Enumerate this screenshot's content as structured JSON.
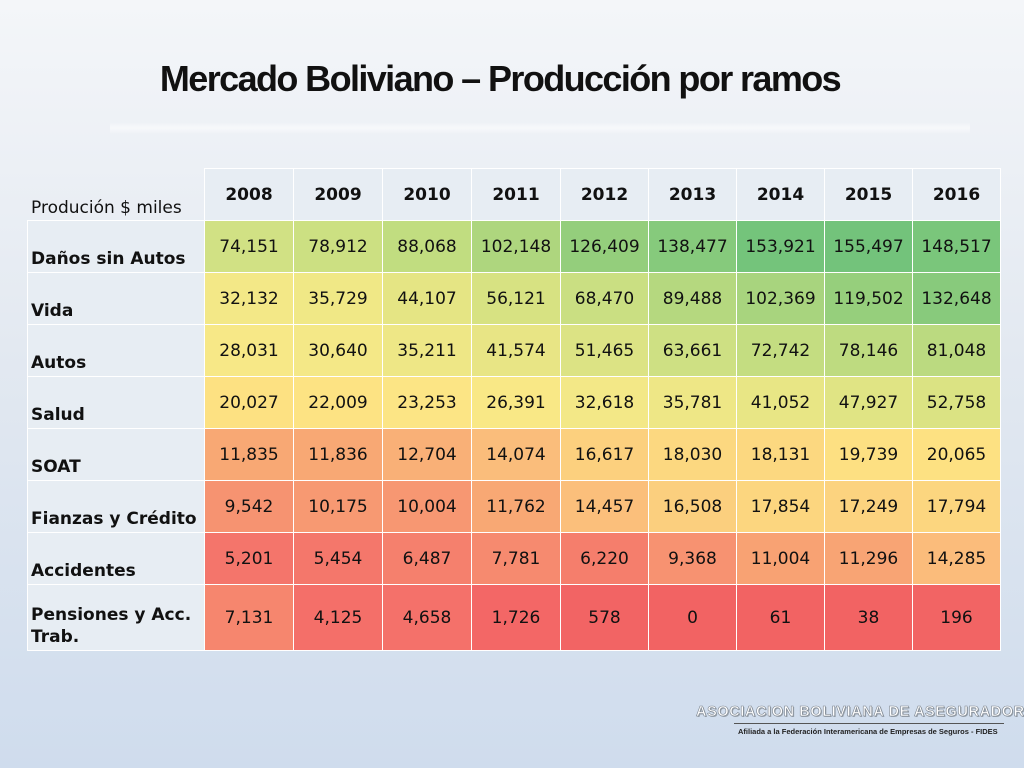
{
  "title": "Mercado Boliviano – Producción por ramos",
  "table": {
    "corner_label": "Produción $ miles",
    "years": [
      "2008",
      "2009",
      "2010",
      "2011",
      "2012",
      "2013",
      "2014",
      "2015",
      "2016"
    ],
    "rows": [
      {
        "label": "Daños sin Autos",
        "values": [
          "74,151",
          "78,912",
          "88,068",
          "102,148",
          "126,409",
          "138,477",
          "153,921",
          "155,497",
          "148,517"
        ],
        "colors": [
          "#d1e184",
          "#cce082",
          "#c1dd80",
          "#aed67e",
          "#94ce7c",
          "#86ca7c",
          "#74c47b",
          "#73c37b",
          "#7ac67b"
        ]
      },
      {
        "label": "Vida",
        "values": [
          "32,132",
          "35,729",
          "44,107",
          "56,121",
          "68,470",
          "89,488",
          "102,369",
          "119,502",
          "132,648"
        ],
        "colors": [
          "#f3e887",
          "#f0e886",
          "#e5e584",
          "#d7e282",
          "#cadf82",
          "#b5d87f",
          "#a8d47e",
          "#96cf7c",
          "#88ca7c"
        ]
      },
      {
        "label": "Autos",
        "values": [
          "28,031",
          "30,640",
          "35,211",
          "41,574",
          "51,465",
          "63,661",
          "72,742",
          "78,146",
          "81,048"
        ],
        "colors": [
          "#f7e887",
          "#f4e887",
          "#eee786",
          "#e8e585",
          "#dce384",
          "#cee083",
          "#c4dd81",
          "#bedb80",
          "#bbda80"
        ]
      },
      {
        "label": "Salud",
        "values": [
          "20,027",
          "22,009",
          "23,253",
          "26,391",
          "32,618",
          "35,781",
          "41,052",
          "47,927",
          "52,758"
        ],
        "colors": [
          "#fde182",
          "#fde383",
          "#fce585",
          "#f9e886",
          "#f3e887",
          "#eee786",
          "#e8e685",
          "#e0e484",
          "#dbe383"
        ]
      },
      {
        "label": "SOAT",
        "values": [
          "11,835",
          "11,836",
          "12,704",
          "14,074",
          "16,617",
          "18,030",
          "18,131",
          "19,739",
          "20,065"
        ],
        "colors": [
          "#f8a874",
          "#f8a874",
          "#f9b077",
          "#fabd7b",
          "#fcd07e",
          "#fcd880",
          "#fcd880",
          "#fde082",
          "#fde182"
        ]
      },
      {
        "label": "Fianzas y Crédito",
        "values": [
          "9,542",
          "10,175",
          "10,004",
          "11,762",
          "14,457",
          "16,508",
          "17,854",
          "17,249",
          "17,794"
        ],
        "colors": [
          "#f69371",
          "#f79972",
          "#f79772",
          "#f8a874",
          "#fbbf7b",
          "#fbcf7e",
          "#fcd67f",
          "#fcd37f",
          "#fcd67f"
        ]
      },
      {
        "label": "Accidentes",
        "values": [
          "5,201",
          "5,454",
          "6,487",
          "7,781",
          "6,220",
          "9,368",
          "11,004",
          "11,296",
          "14,285"
        ],
        "colors": [
          "#f4756b",
          "#f4776b",
          "#f5806d",
          "#f68a6f",
          "#f57e6c",
          "#f79271",
          "#f8a273",
          "#f8a474",
          "#fbbc7b"
        ]
      },
      {
        "label": "Pensiones y Acc. Trab.",
        "values": [
          "7,131",
          "4,125",
          "4,658",
          "1,726",
          "578",
          "0",
          "61",
          "38",
          "196"
        ],
        "colors": [
          "#f6866e",
          "#f46f69",
          "#f4716a",
          "#f36766",
          "#f26464",
          "#f26363",
          "#f26363",
          "#f26363",
          "#f26464"
        ]
      }
    ]
  },
  "logo": {
    "main": "ASOCIACION BOLIVIANA DE ASEGURADORES",
    "sub": "Afiliada a la Federación Interamericana de Empresas de Seguros - FIDES"
  }
}
